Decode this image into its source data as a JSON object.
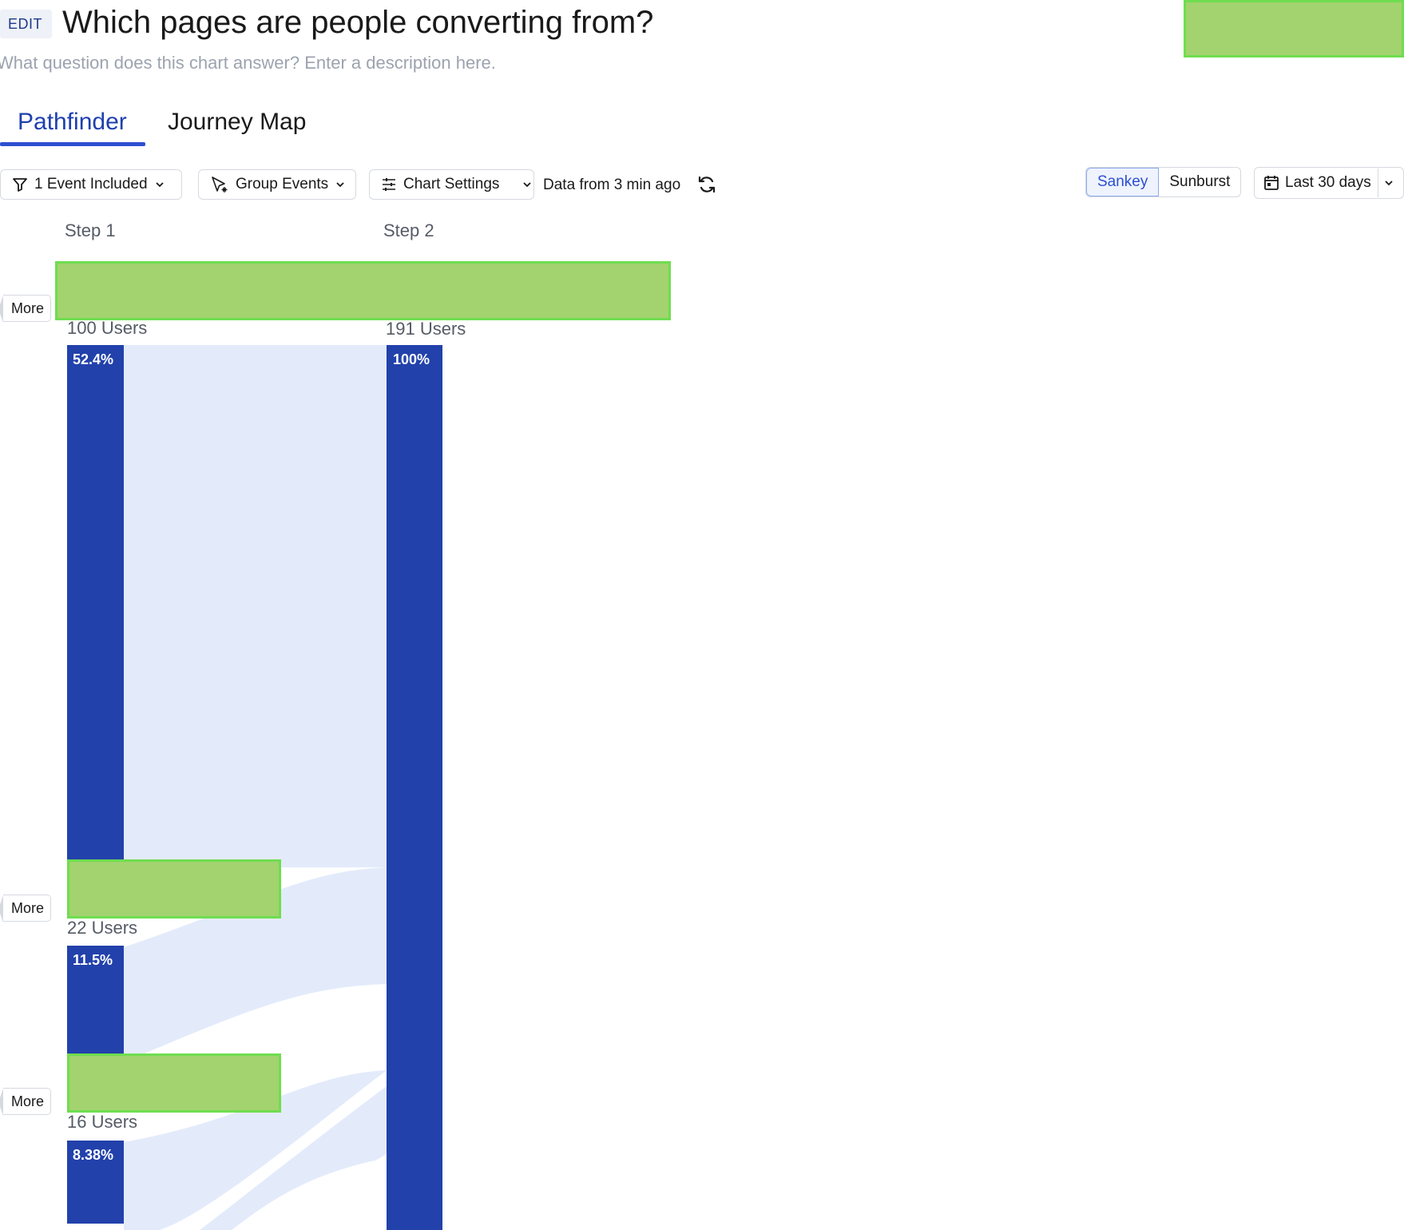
{
  "header": {
    "edit_label": "EDIT",
    "title": "Which pages are people converting from?",
    "description_placeholder": "What question does this chart answer? Enter a description here."
  },
  "tabs": [
    {
      "label": "Pathfinder",
      "active": true
    },
    {
      "label": "Journey Map",
      "active": false
    }
  ],
  "toolbar": {
    "events_filter": "1 Event Included",
    "group_events": "Group Events",
    "chart_settings": "Chart Settings",
    "data_freshness": "Data from 3 min ago",
    "view_modes": [
      {
        "label": "Sankey",
        "active": true
      },
      {
        "label": "Sunburst",
        "active": false
      }
    ],
    "date_range": "Last 30 days"
  },
  "colors": {
    "accent": "#2d4fd0",
    "node": "#2241ab",
    "link": "#e3ebfb",
    "redacted": "#a3d36f"
  },
  "sankey": {
    "steps": [
      "Step 1",
      "Step 2"
    ],
    "more_label": "More",
    "step1_nodes": [
      {
        "users": "100 Users",
        "percent": "52.4%",
        "share": 0.524
      },
      {
        "users": "22 Users",
        "percent": "11.5%",
        "share": 0.115
      },
      {
        "users": "16 Users",
        "percent": "8.38%",
        "share": 0.0838
      }
    ],
    "step2_nodes": [
      {
        "users": "191 Users",
        "percent": "100%",
        "share": 1.0
      }
    ]
  }
}
